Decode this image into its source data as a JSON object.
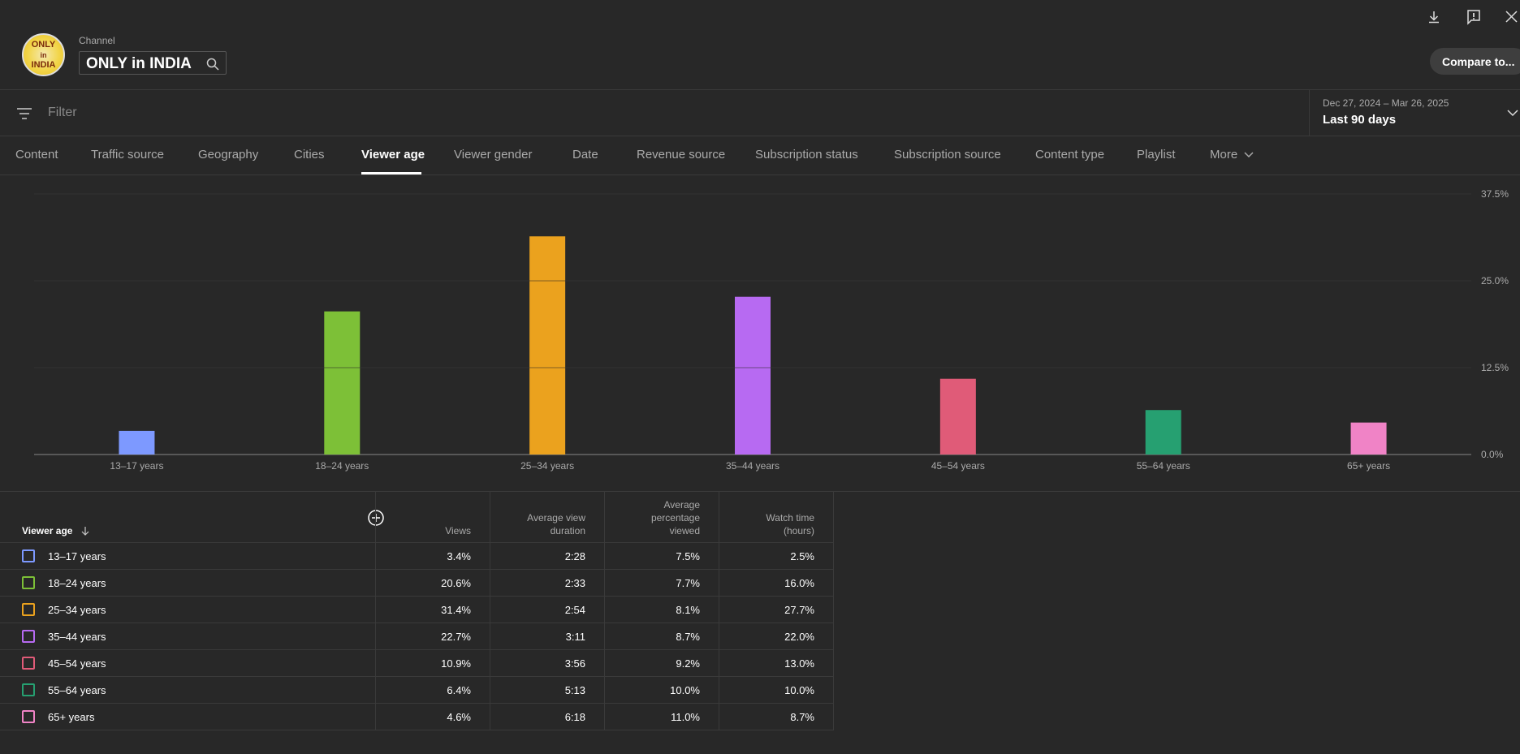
{
  "header": {
    "channel_label": "Channel",
    "channel_name": "ONLY in INDIA",
    "avatar_text": [
      "ONLY",
      "in",
      "INDIA"
    ],
    "compare_label": "Compare to..."
  },
  "filter": {
    "placeholder": "Filter",
    "date_range": "Dec 27, 2024 – Mar 26, 2025",
    "date_label": "Last 90 days"
  },
  "tabs": [
    {
      "label": "Content",
      "active": false
    },
    {
      "label": "Traffic source",
      "active": false
    },
    {
      "label": "Geography",
      "active": false
    },
    {
      "label": "Cities",
      "active": false
    },
    {
      "label": "Viewer age",
      "active": true
    },
    {
      "label": "Viewer gender",
      "active": false
    },
    {
      "label": "Date",
      "active": false
    },
    {
      "label": "Revenue source",
      "active": false
    },
    {
      "label": "Subscription status",
      "active": false
    },
    {
      "label": "Subscription source",
      "active": false
    },
    {
      "label": "Content type",
      "active": false
    },
    {
      "label": "Playlist",
      "active": false
    },
    {
      "label": "More",
      "active": false
    }
  ],
  "chart_data": {
    "type": "bar",
    "categories": [
      "13–17 years",
      "18–24 years",
      "25–34 years",
      "35–44 years",
      "45–54 years",
      "55–64 years",
      "65+ years"
    ],
    "values": [
      3.4,
      20.6,
      31.4,
      22.7,
      10.9,
      6.4,
      4.6
    ],
    "colors": [
      "#7d99ff",
      "#7dc037",
      "#eba21e",
      "#b76af2",
      "#e05b78",
      "#26a071",
      "#f083c6"
    ],
    "ylim": [
      0,
      37.5
    ],
    "yticks": [
      "0.0%",
      "12.5%",
      "25.0%",
      "37.5%"
    ],
    "ytick_values": [
      0,
      12.5,
      25,
      37.5
    ],
    "grid": true
  },
  "table": {
    "headers": {
      "dimension": "Viewer age",
      "views": "Views",
      "avg_view_duration": [
        "Average view",
        "duration"
      ],
      "avg_pct_viewed": [
        "Average",
        "percentage",
        "viewed"
      ],
      "watch_time": [
        "Watch time",
        "(hours)"
      ]
    },
    "rows": [
      {
        "label": "13–17 years",
        "views": "3.4%",
        "avd": "2:28",
        "apv": "7.5%",
        "wt": "2.5%"
      },
      {
        "label": "18–24 years",
        "views": "20.6%",
        "avd": "2:33",
        "apv": "7.7%",
        "wt": "16.0%"
      },
      {
        "label": "25–34 years",
        "views": "31.4%",
        "avd": "2:54",
        "apv": "8.1%",
        "wt": "27.7%"
      },
      {
        "label": "35–44 years",
        "views": "22.7%",
        "avd": "3:11",
        "apv": "8.7%",
        "wt": "22.0%"
      },
      {
        "label": "45–54 years",
        "views": "10.9%",
        "avd": "3:56",
        "apv": "9.2%",
        "wt": "13.0%"
      },
      {
        "label": "55–64 years",
        "views": "6.4%",
        "avd": "5:13",
        "apv": "10.0%",
        "wt": "10.0%"
      },
      {
        "label": "65+ years",
        "views": "4.6%",
        "avd": "6:18",
        "apv": "11.0%",
        "wt": "8.7%"
      }
    ]
  },
  "icons": {
    "download": "download-icon",
    "feedback": "feedback-icon",
    "close": "close-icon",
    "search": "search-icon",
    "filter": "filter-icon",
    "sort": "sort-down-icon",
    "add_metric": "add-circle-icon"
  }
}
